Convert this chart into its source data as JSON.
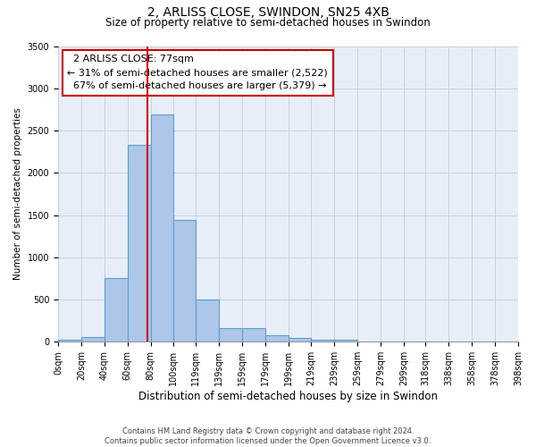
{
  "title": "2, ARLISS CLOSE, SWINDON, SN25 4XB",
  "subtitle": "Size of property relative to semi-detached houses in Swindon",
  "xlabel": "Distribution of semi-detached houses by size in Swindon",
  "ylabel": "Number of semi-detached properties",
  "annotation_line1": "2 ARLISS CLOSE: 77sqm",
  "annotation_line2": "← 31% of semi-detached houses are smaller (2,522)",
  "annotation_line3": "67% of semi-detached houses are larger (5,379) →",
  "footer_line1": "Contains HM Land Registry data © Crown copyright and database right 2024.",
  "footer_line2": "Contains public sector information licensed under the Open Government Licence v3.0.",
  "bar_edges": [
    0,
    20,
    40,
    60,
    80,
    100,
    119,
    139,
    159,
    179,
    199,
    219,
    239,
    259,
    279,
    299,
    318,
    338,
    358,
    378,
    398
  ],
  "bar_heights": [
    30,
    60,
    760,
    2330,
    2690,
    1440,
    500,
    165,
    165,
    75,
    50,
    30,
    20,
    0,
    0,
    0,
    0,
    0,
    0,
    0
  ],
  "bar_color": "#aec6e8",
  "bar_edgecolor": "#5a9fd4",
  "property_value": 77,
  "vline_color": "#cc0000",
  "annotation_box_edgecolor": "#cc0000",
  "background_color": "#e8eef8",
  "grid_color": "#c8d0e0",
  "ylim": [
    0,
    3500
  ],
  "yticks": [
    0,
    500,
    1000,
    1500,
    2000,
    2500,
    3000,
    3500
  ],
  "title_fontsize": 10,
  "subtitle_fontsize": 8.5,
  "xlabel_fontsize": 8.5,
  "ylabel_fontsize": 7.5,
  "tick_fontsize": 7,
  "footer_fontsize": 6,
  "annotation_fontsize": 8
}
